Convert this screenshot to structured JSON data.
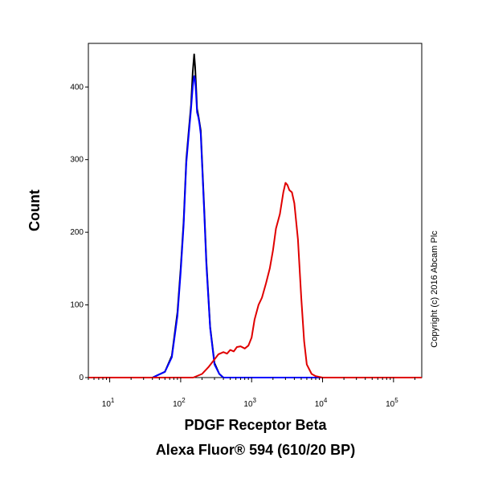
{
  "chart_data": {
    "type": "line",
    "xscale": "log",
    "ylabel": "Count",
    "xlabel_line1": "PDGF Receptor Beta",
    "xlabel_line2": "Alexa Fluor® 594 (610/20 BP)",
    "copyright": "Copyright (c) 2016 Abcam Plc",
    "xlim": [
      5,
      250000
    ],
    "ylim": [
      0,
      460
    ],
    "yticks": [
      0,
      100,
      200,
      300,
      400
    ],
    "xticks": [
      {
        "value": 10,
        "base": "10",
        "exp": "1"
      },
      {
        "value": 100,
        "base": "10",
        "exp": "2"
      },
      {
        "value": 1000,
        "base": "10",
        "exp": "3"
      },
      {
        "value": 10000,
        "base": "10",
        "exp": "4"
      },
      {
        "value": 100000,
        "base": "10",
        "exp": "5"
      }
    ],
    "series": [
      {
        "color": "#000000",
        "x": [
          5,
          40,
          60,
          75,
          90,
          100,
          110,
          120,
          130,
          140,
          148,
          155,
          160,
          165,
          170,
          178,
          185,
          192,
          200,
          215,
          230,
          260,
          300,
          350,
          400,
          250000
        ],
        "y": [
          0,
          0,
          8,
          30,
          90,
          150,
          215,
          300,
          340,
          375,
          420,
          445,
          428,
          400,
          370,
          360,
          350,
          340,
          300,
          230,
          160,
          70,
          20,
          5,
          0,
          0
        ]
      },
      {
        "color": "#0000ff",
        "x": [
          5,
          40,
          60,
          75,
          90,
          100,
          110,
          120,
          130,
          140,
          148,
          155,
          160,
          165,
          170,
          178,
          185,
          192,
          200,
          215,
          230,
          260,
          300,
          350,
          400,
          250000
        ],
        "y": [
          0,
          0,
          8,
          28,
          85,
          145,
          210,
          295,
          335,
          370,
          400,
          415,
          410,
          390,
          365,
          358,
          348,
          335,
          295,
          225,
          155,
          68,
          18,
          5,
          0,
          0
        ]
      },
      {
        "color": "#e00000",
        "x": [
          5,
          150,
          200,
          250,
          300,
          340,
          400,
          450,
          500,
          560,
          620,
          700,
          800,
          900,
          1000,
          1100,
          1250,
          1400,
          1600,
          1800,
          2000,
          2200,
          2500,
          2800,
          3000,
          3200,
          3400,
          3700,
          4000,
          4500,
          5000,
          5500,
          6000,
          7000,
          8000,
          10000,
          250000
        ],
        "y": [
          0,
          0,
          5,
          15,
          25,
          32,
          35,
          33,
          38,
          36,
          42,
          43,
          40,
          44,
          55,
          80,
          100,
          110,
          130,
          150,
          175,
          205,
          225,
          255,
          268,
          265,
          258,
          255,
          240,
          190,
          110,
          50,
          18,
          5,
          2,
          0,
          0
        ]
      }
    ]
  }
}
